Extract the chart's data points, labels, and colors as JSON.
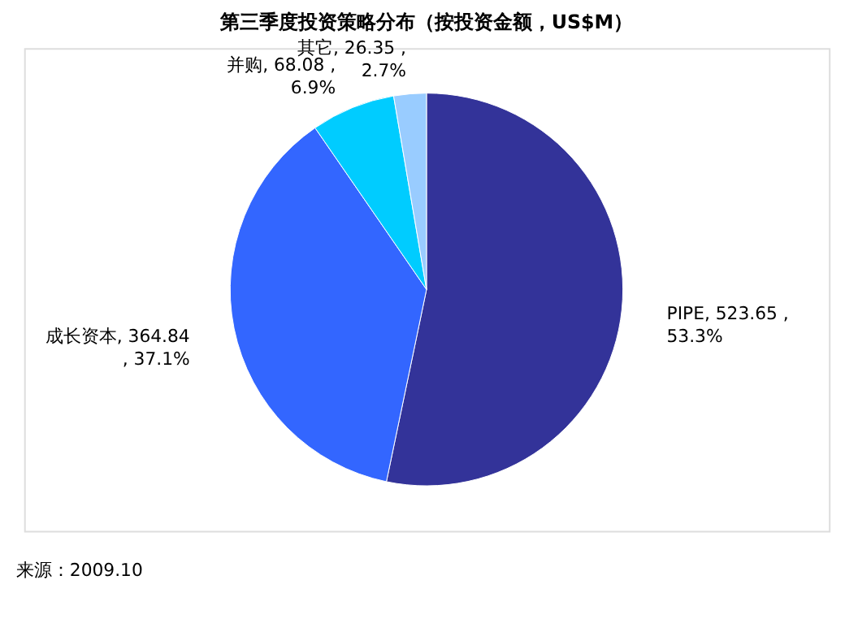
{
  "chart_data": {
    "type": "pie",
    "title": "第三季度投资策略分布（按投资金额，US$M）",
    "categories": [
      "PIPE",
      "成长资本",
      "并购",
      "其它"
    ],
    "values": [
      523.65,
      364.84,
      68.08,
      26.35
    ],
    "colors": [
      "#333399",
      "#3366ff",
      "#00ccff",
      "#99ccff"
    ],
    "value_labels": [
      "523.65 ,\n53.3%",
      "364.84\n, 37.1%",
      "68.08 ,\n6.9%",
      "26.35 ,\n2.7%"
    ],
    "legend": false,
    "annotations": [
      "来源：2009.10"
    ]
  }
}
